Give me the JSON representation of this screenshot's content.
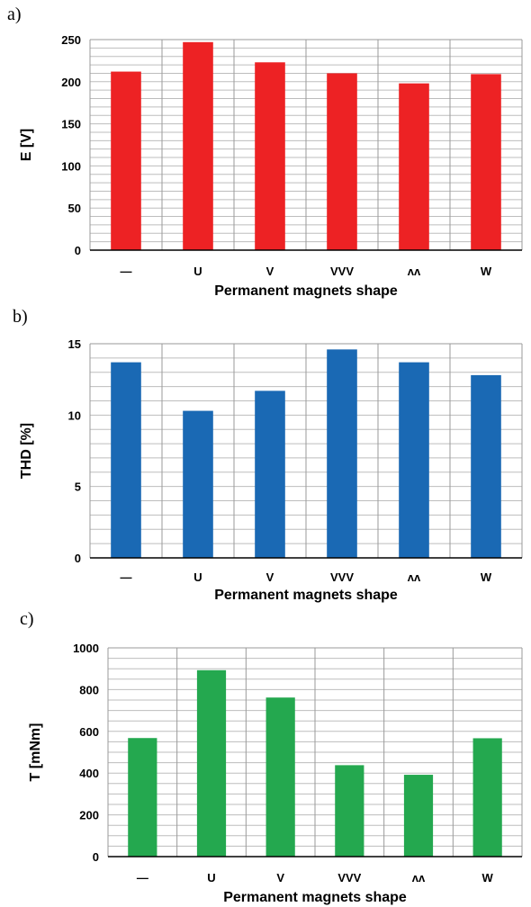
{
  "chart_data": [
    {
      "type": "bar",
      "panel_label": "a)",
      "categories": [
        "—",
        "U",
        "V",
        "VVV",
        "ʌʌ",
        "W"
      ],
      "values": [
        212,
        247,
        223,
        210,
        198,
        209
      ],
      "ylabel": "E [V]",
      "xlabel": "Permanent magnets shape",
      "ylim": [
        0,
        250
      ],
      "yticks": [
        "0",
        "50",
        "100",
        "150",
        "200",
        "250"
      ],
      "ytick_values": [
        0,
        50,
        100,
        150,
        200,
        250
      ],
      "minor_step": 10,
      "grid": true,
      "color": "#ed2224"
    },
    {
      "type": "bar",
      "panel_label": "b)",
      "categories": [
        "—",
        "U",
        "V",
        "VVV",
        "ʌʌ",
        "W"
      ],
      "values": [
        13.7,
        10.3,
        11.7,
        14.6,
        13.7,
        12.8
      ],
      "ylabel": "THD [%]",
      "xlabel": "Permanent magnets shape",
      "ylim": [
        0,
        15
      ],
      "yticks": [
        "0",
        "5",
        "10",
        "15"
      ],
      "ytick_values": [
        0,
        5,
        10,
        15
      ],
      "minor_step": 1,
      "grid": true,
      "color": "#1a69b4"
    },
    {
      "type": "bar",
      "panel_label": "c)",
      "categories": [
        "—",
        "U",
        "V",
        "VVV",
        "ʌʌ",
        "W"
      ],
      "values": [
        568,
        893,
        762,
        438,
        392,
        567
      ],
      "ylabel": "T [mNm]",
      "xlabel": "Permanent magnets shape",
      "ylim": [
        0,
        1000
      ],
      "yticks": [
        "0",
        "200",
        "400",
        "600",
        "800",
        "1000"
      ],
      "ytick_values": [
        0,
        200,
        400,
        600,
        800,
        1000
      ],
      "minor_step": 50,
      "grid": true,
      "color": "#24a84f"
    }
  ]
}
